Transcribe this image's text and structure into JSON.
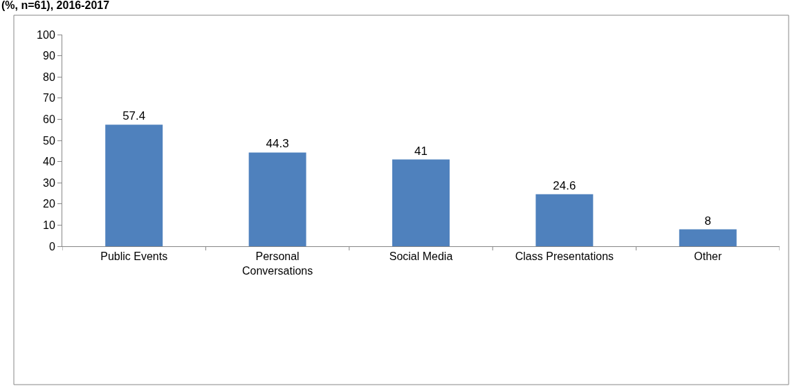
{
  "chart_data": {
    "type": "bar",
    "title": "(%, n=61), 2016-2017",
    "categories": [
      "Public Events",
      "Personal Conversations",
      "Social Media",
      "Class Presentations",
      "Other"
    ],
    "values": [
      57.4,
      44.3,
      41,
      24.6,
      8
    ],
    "color": "#4f81bd",
    "ylim": [
      0,
      100
    ],
    "yticks": [
      0,
      10,
      20,
      30,
      40,
      50,
      60,
      70,
      80,
      90,
      100
    ],
    "grid": false,
    "data_labels": true
  }
}
